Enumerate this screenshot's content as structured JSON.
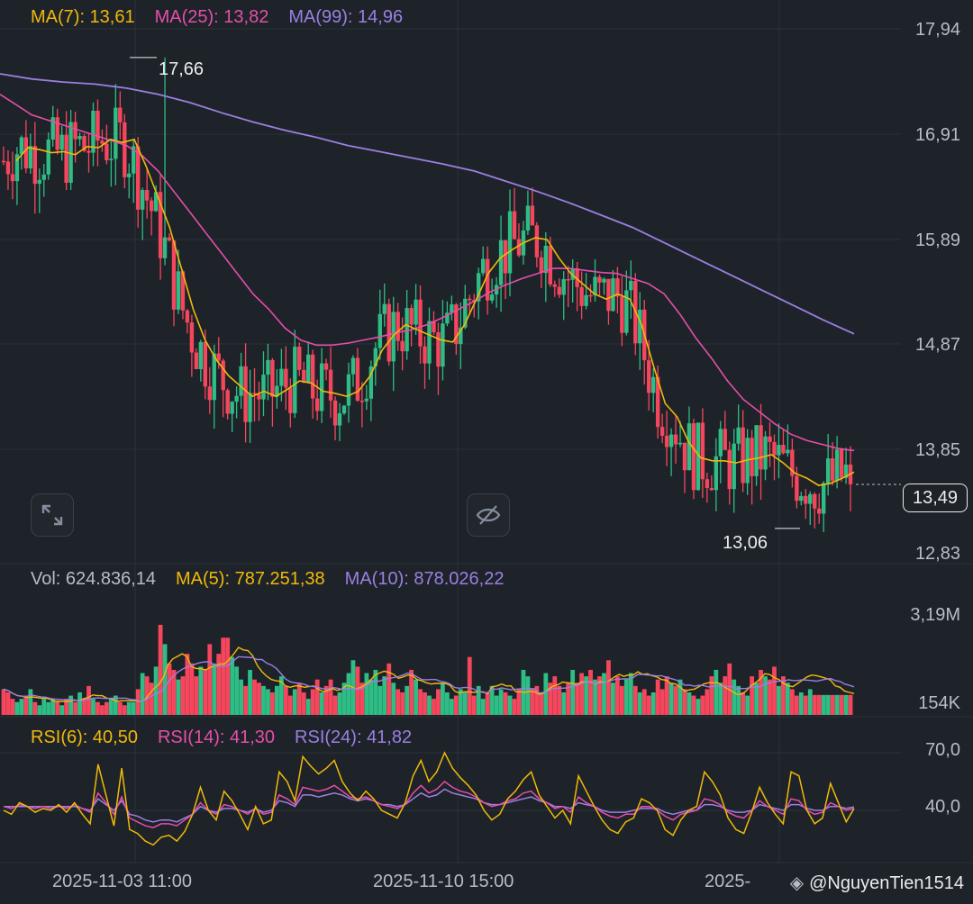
{
  "legends": {
    "main": [
      {
        "label": "MA(7): 13,61",
        "color": "#f0b90b"
      },
      {
        "label": "MA(25): 13,82",
        "color": "#e64eaa"
      },
      {
        "label": "MA(99): 14,96",
        "color": "#9b7fe2"
      }
    ],
    "volume": [
      {
        "label": "Vol: 624.836,14",
        "color": "#b7bdc6"
      },
      {
        "label": "MA(5): 787.251,38",
        "color": "#f0b90b"
      },
      {
        "label": "MA(10): 878.026,22",
        "color": "#9b7fe2"
      }
    ],
    "rsi": [
      {
        "label": "RSI(6): 40,50",
        "color": "#f0b90b"
      },
      {
        "label": "RSI(14): 41,30",
        "color": "#e64eaa"
      },
      {
        "label": "RSI(24): 41,82",
        "color": "#9b7fe2"
      }
    ]
  },
  "price_axis": [
    "17,94",
    "16,91",
    "15,89",
    "14,87",
    "13,85",
    "12,83"
  ],
  "volume_axis": [
    "3,19M",
    "154K"
  ],
  "rsi_axis": [
    "70,0",
    "40,0"
  ],
  "current_price": "13,49",
  "high_label": "17,66",
  "low_label": "13,06",
  "dates": [
    "2025-11-03 11:00",
    "2025-11-10 15:00",
    "2025-"
  ],
  "watermark": "@NguyenTien1514",
  "colors": {
    "up": "#2ebd85",
    "down": "#f6465d",
    "background": "#1e2329",
    "grid": "#2b3139"
  },
  "chart_data": {
    "type": "candlestick",
    "price_range": [
      12.83,
      17.94
    ],
    "high": 17.66,
    "low": 13.06,
    "last": 13.49,
    "ma7": [
      16.65,
      16.78,
      16.76,
      16.73,
      16.74,
      16.71,
      16.79,
      16.78,
      16.86,
      16.83,
      16.86,
      16.6,
      16.3,
      16.0,
      15.6,
      15.2,
      14.9,
      14.7,
      14.55,
      14.45,
      14.35,
      14.4,
      14.35,
      14.42,
      14.5,
      14.48,
      14.4,
      14.38,
      14.35,
      14.4,
      14.55,
      14.8,
      14.95,
      15.05,
      15.0,
      14.95,
      14.9,
      14.88,
      15.05,
      15.3,
      15.55,
      15.7,
      15.78,
      15.85,
      15.9,
      15.88,
      15.7,
      15.55,
      15.45,
      15.35,
      15.3,
      15.35,
      15.3,
      15.05,
      14.65,
      14.28,
      14.15,
      13.9,
      13.75,
      13.72,
      13.72,
      13.7,
      13.73,
      13.75,
      13.78,
      13.7,
      13.6,
      13.55,
      13.48,
      13.5,
      13.55,
      13.61
    ],
    "ma25": [
      17.3,
      17.2,
      17.1,
      17.05,
      17.0,
      16.95,
      16.9,
      16.85,
      16.8,
      16.7,
      16.55,
      16.35,
      16.15,
      15.95,
      15.75,
      15.55,
      15.35,
      15.2,
      15.02,
      14.9,
      14.85,
      14.85,
      14.87,
      14.9,
      14.93,
      14.97,
      15.0,
      15.05,
      15.12,
      15.2,
      15.28,
      15.37,
      15.44,
      15.5,
      15.55,
      15.6,
      15.6,
      15.58,
      15.56,
      15.55,
      15.5,
      15.45,
      15.35,
      15.15,
      14.92,
      14.72,
      14.5,
      14.32,
      14.2,
      14.08,
      13.98,
      13.92,
      13.88,
      13.84,
      13.82
    ],
    "ma99": [
      17.5,
      17.45,
      17.42,
      17.4,
      17.36,
      17.3,
      17.22,
      17.12,
      17.03,
      16.95,
      16.88,
      16.8,
      16.74,
      16.68,
      16.62,
      16.55,
      16.45,
      16.35,
      16.24,
      16.12,
      16.0,
      15.85,
      15.7,
      15.55,
      15.4,
      15.25,
      15.1,
      14.96
    ],
    "volume_range": [
      0,
      3190000
    ],
    "volume_last": 624836.14,
    "volume_ma5": 787251.38,
    "volume_ma10": 878026.22,
    "volumes": [
      0.8,
      0.7,
      0.5,
      0.4,
      0.5,
      0.6,
      0.8,
      0.4,
      0.3,
      0.5,
      0.4,
      0.5,
      0.4,
      0.3,
      0.5,
      0.6,
      0.4,
      0.7,
      0.5,
      0.9,
      0.5,
      0.4,
      0.3,
      0.4,
      0.5,
      0.6,
      0.4,
      0.3,
      0.4,
      0.4,
      0.8,
      1.3,
      1.2,
      1.0,
      1.5,
      2.8,
      2.2,
      1.6,
      1.4,
      1.1,
      1.2,
      1.9,
      1.6,
      1.2,
      1.5,
      1.4,
      2.2,
      1.6,
      1.9,
      2.4,
      2.4,
      1.8,
      1.5,
      1.1,
      0.9,
      1.4,
      1.1,
      1.0,
      0.9,
      0.8,
      0.7,
      0.9,
      1.2,
      0.9,
      0.6,
      0.8,
      1.0,
      0.7,
      0.5,
      0.8,
      1.1,
      0.7,
      0.9,
      1.1,
      0.6,
      0.7,
      1.0,
      1.3,
      1.7,
      1.5,
      1.0,
      1.3,
      1.1,
      1.4,
      0.9,
      1.2,
      1.6,
      1.0,
      0.8,
      0.7,
      0.9,
      1.4,
      1.1,
      0.8,
      0.7,
      0.6,
      0.5,
      0.8,
      1.0,
      0.7,
      0.5,
      0.6,
      0.8,
      0.7,
      1.8,
      0.6,
      0.9,
      0.5,
      0.7,
      0.9,
      0.6,
      0.8,
      0.7,
      0.6,
      0.5,
      0.8,
      1.4,
      1.2,
      0.8,
      0.9,
      0.7,
      1.3,
      1.0,
      1.2,
      0.9,
      0.7,
      1.0,
      1.4,
      1.0,
      1.3,
      1.2,
      1.4,
      1.1,
      1.2,
      1.3,
      1.7,
      1.0,
      1.2,
      0.9,
      1.1,
      1.3,
      0.9,
      0.7,
      0.8,
      0.6,
      0.7,
      1.1,
      0.8,
      1.2,
      1.0,
      0.9,
      1.1,
      0.8,
      0.7,
      0.6,
      0.5,
      0.6,
      0.8,
      1.2,
      1.4,
      1.0,
      1.2,
      1.6,
      1.1,
      0.9,
      0.7,
      0.6,
      1.2,
      1.0,
      1.4,
      1.2,
      1.1,
      1.5,
      0.9,
      1.2,
      1.0,
      0.8,
      0.6,
      0.7,
      0.6,
      0.8,
      0.62
    ],
    "rsi_range": [
      0,
      100
    ],
    "rsi6": [
      40,
      38,
      44,
      42,
      39,
      41,
      40,
      43,
      39,
      44,
      38,
      33,
      64,
      48,
      32,
      62,
      30,
      28,
      24,
      22,
      26,
      27,
      24,
      29,
      38,
      52,
      40,
      35,
      50,
      45,
      38,
      30,
      42,
      33,
      35,
      60,
      55,
      45,
      68,
      63,
      59,
      62,
      66,
      55,
      49,
      45,
      50,
      46,
      40,
      38,
      36,
      44,
      58,
      66,
      55,
      60,
      70,
      62,
      57,
      53,
      48,
      40,
      35,
      38,
      46,
      50,
      56,
      60,
      48,
      42,
      36,
      40,
      33,
      58,
      50,
      42,
      35,
      30,
      28,
      34,
      36,
      46,
      44,
      40,
      30,
      27,
      35,
      40,
      42,
      60,
      55,
      48,
      36,
      30,
      28,
      39,
      52,
      44,
      38,
      33,
      60,
      58,
      40,
      33,
      36,
      54,
      44,
      34,
      41
    ],
    "rsi14": [
      42,
      41,
      43,
      42,
      41,
      42,
      41,
      42,
      41,
      43,
      41,
      39,
      49,
      44,
      38,
      47,
      36,
      34,
      32,
      31,
      33,
      33,
      32,
      35,
      38,
      44,
      40,
      38,
      43,
      42,
      40,
      38,
      41,
      38,
      39,
      48,
      46,
      43,
      52,
      51,
      50,
      51,
      53,
      50,
      47,
      46,
      47,
      45,
      43,
      42,
      41,
      43,
      49,
      53,
      49,
      51,
      55,
      52,
      50,
      49,
      47,
      44,
      42,
      43,
      45,
      46,
      49,
      50,
      46,
      44,
      41,
      42,
      39,
      47,
      44,
      42,
      39,
      37,
      36,
      38,
      38,
      42,
      42,
      40,
      37,
      35,
      38,
      39,
      40,
      46,
      45,
      43,
      39,
      37,
      36,
      40,
      45,
      42,
      40,
      38,
      46,
      45,
      40,
      38,
      39,
      44,
      42,
      40,
      41
    ],
    "rsi24": [
      42,
      42,
      42,
      42,
      42,
      42,
      42,
      42,
      42,
      42,
      41,
      40,
      46,
      43,
      40,
      45,
      38,
      37,
      35,
      34,
      35,
      35,
      34,
      36,
      38,
      42,
      40,
      39,
      41,
      41,
      40,
      39,
      41,
      39,
      40,
      45,
      44,
      42,
      48,
      48,
      47,
      48,
      49,
      48,
      46,
      45,
      46,
      45,
      43,
      43,
      42,
      43,
      46,
      49,
      47,
      48,
      51,
      49,
      48,
      47,
      46,
      44,
      43,
      43,
      44,
      45,
      46,
      47,
      45,
      44,
      42,
      42,
      41,
      44,
      43,
      42,
      40,
      39,
      39,
      39,
      40,
      41,
      41,
      41,
      39,
      38,
      39,
      40,
      40,
      43,
      43,
      42,
      40,
      39,
      39,
      40,
      43,
      42,
      41,
      40,
      43,
      43,
      41,
      40,
      40,
      42,
      42,
      41,
      41.82
    ]
  }
}
